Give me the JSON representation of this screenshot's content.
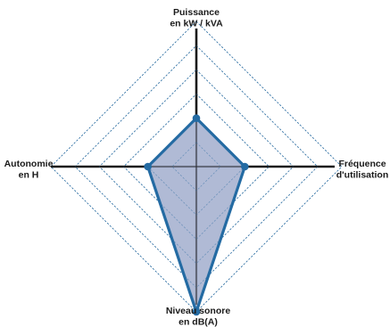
{
  "chart_data": {
    "type": "radar",
    "title": "",
    "axes": [
      {
        "key": "puissance",
        "label_lines": [
          "Puissance",
          "en kW / kVA"
        ]
      },
      {
        "key": "frequence",
        "label_lines": [
          "Fréquence",
          "d'utilisation"
        ]
      },
      {
        "key": "niveau_sonore",
        "label_lines": [
          "Niveau sonore",
          "en dB(A)"
        ]
      },
      {
        "key": "autonomie",
        "label_lines": [
          "Autonomie",
          "en H"
        ]
      }
    ],
    "range": [
      0,
      6
    ],
    "grid_levels": [
      1,
      2,
      3,
      4,
      5,
      6
    ],
    "grid_style": "dashed",
    "series": [
      {
        "values": [
          2,
          2,
          6,
          2
        ]
      }
    ],
    "legend": "none"
  },
  "colors": {
    "axis": "#1a1a1a",
    "grid": "#2e6fa3",
    "series_stroke": "#246ba3",
    "series_fill": "#a7b2d0",
    "marker_fill": "#246ba3"
  }
}
